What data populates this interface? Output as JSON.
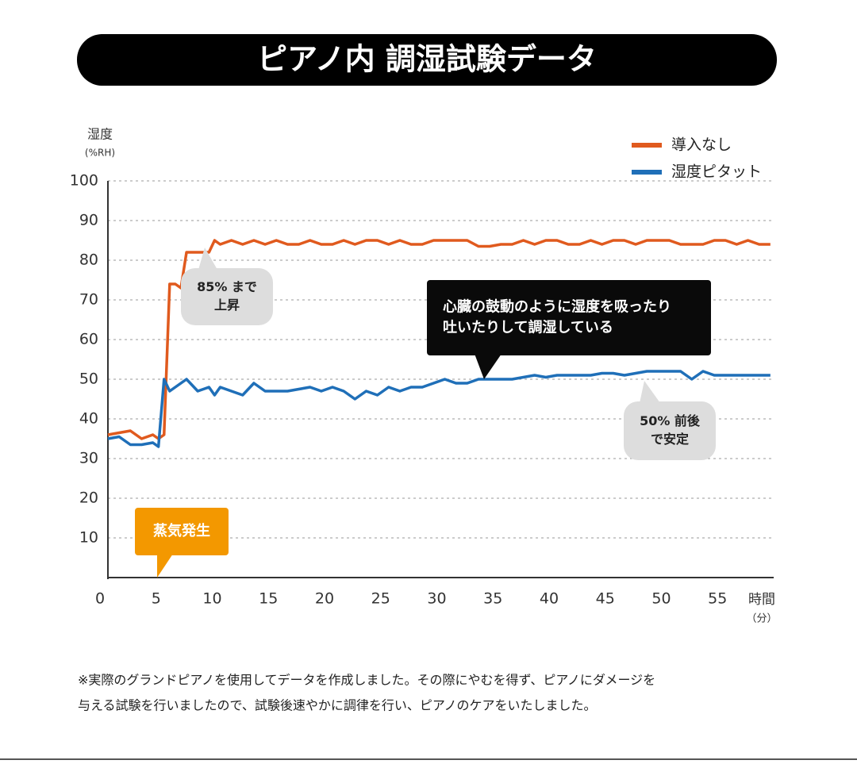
{
  "chart_data": {
    "type": "line",
    "title": "ピアノ内 調湿試験データ",
    "y_label": [
      "湿度",
      "(%RH)"
    ],
    "x_label": [
      "時間",
      "（分）"
    ],
    "x": [
      0,
      1,
      2,
      3,
      4,
      4.5,
      5,
      5.5,
      6,
      6.5,
      7,
      8,
      9,
      9.5,
      10,
      11,
      12,
      13,
      14,
      15,
      16,
      17,
      18,
      19,
      20,
      21,
      22,
      23,
      24,
      25,
      26,
      27,
      28,
      29,
      30,
      31,
      32,
      33,
      34,
      35,
      36,
      37,
      38,
      39,
      40,
      41,
      42,
      43,
      44,
      45,
      46,
      47,
      48,
      49,
      50,
      51,
      52,
      53,
      54,
      55,
      56,
      57,
      58,
      59
    ],
    "series": [
      {
        "name": "導入なし",
        "color": "#e05a1e",
        "values": [
          36,
          36.5,
          37,
          35,
          36,
          35,
          36,
          74,
          74,
          73,
          82,
          82,
          82,
          85,
          84,
          85,
          84,
          85,
          84,
          85,
          84,
          84,
          85,
          84,
          84,
          85,
          84,
          85,
          85,
          84,
          85,
          84,
          84,
          85,
          85,
          85,
          85,
          83.5,
          83.5,
          84,
          84,
          85,
          84,
          85,
          85,
          84,
          84,
          85,
          84,
          85,
          85,
          84,
          85,
          85,
          85,
          84,
          84,
          84,
          85,
          85,
          84,
          85,
          84,
          84
        ]
      },
      {
        "name": "湿度ピタット",
        "color": "#1f6fb8",
        "values": [
          35,
          35.5,
          33.5,
          33.5,
          34,
          33,
          50,
          47,
          48,
          49,
          50,
          47,
          48,
          46,
          48,
          47,
          46,
          49,
          47,
          47,
          47,
          47.5,
          48,
          47,
          48,
          47,
          45,
          47,
          46,
          48,
          47,
          48,
          48,
          49,
          50,
          49,
          49,
          50,
          50,
          50,
          50,
          50.5,
          51,
          50.5,
          51,
          51,
          51,
          51,
          51.5,
          51.5,
          51,
          51.5,
          52,
          52,
          52,
          52,
          50,
          52,
          51,
          51,
          51,
          51,
          51,
          51
        ]
      }
    ],
    "xlim": [
      0,
      60
    ],
    "ylim": [
      0,
      100
    ],
    "xticks": [
      0,
      5,
      10,
      15,
      20,
      25,
      30,
      35,
      40,
      45,
      50,
      55
    ],
    "yticks": [
      10,
      20,
      30,
      40,
      50,
      60,
      70,
      80,
      90,
      100
    ],
    "grid": true,
    "legend": "top-right",
    "annotations": [
      {
        "lines": [
          "85% まで",
          "上昇"
        ]
      },
      {
        "lines": [
          "心臓の鼓動のように湿度を吸ったり",
          "吐いたりして調湿している"
        ]
      },
      {
        "lines": [
          "50% 前後",
          "で安定"
        ]
      },
      {
        "lines": [
          "蒸気発生"
        ]
      }
    ],
    "footnote": [
      "※実際のグランドピアノを使用してデータを作成しました。その際にやむを得ず、ピアノにダメージを",
      "与える試験を行いましたので、試験後速やかに調律を行い、ピアノのケアをいたしました。"
    ]
  }
}
